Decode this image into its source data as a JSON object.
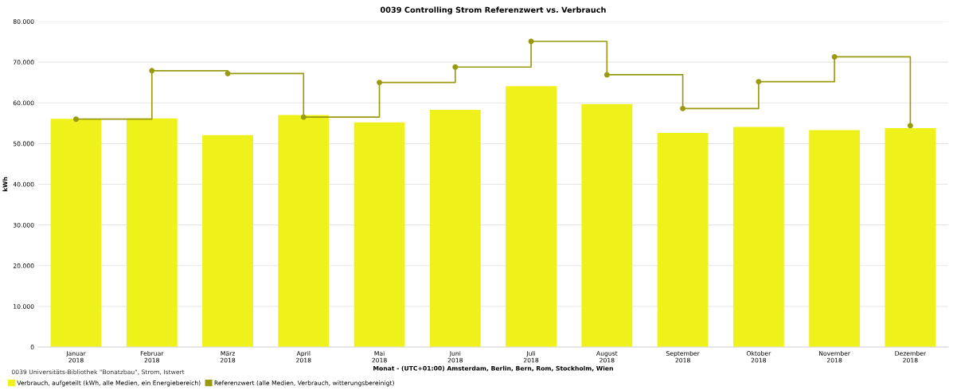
{
  "chart_data": {
    "type": "bar",
    "title": "0039 Controlling Strom Referenzwert vs. Verbrauch",
    "xlabel": "Monat - (UTC+01:00) Amsterdam, Berlin, Bern, Rom, Stockholm, Wien",
    "ylabel": "kWh",
    "legend_title": "0039 Universitäts-Bibliothek \"Bonatzbau\", Strom, Istwert",
    "categories": [
      "Januar\n2018",
      "Februar\n2018",
      "März\n2018",
      "April\n2018",
      "Mai\n2018",
      "Juni\n2018",
      "Juli\n2018",
      "August\n2018",
      "September\n2018",
      "Oktober\n2018",
      "November\n2018",
      "Dezember\n2018"
    ],
    "series": [
      {
        "name": "Verbrauch, aufgeteilt (kWh, alle Medien, ein Energiebereich)",
        "color": "#eef21a",
        "values": [
          56100,
          56200,
          52100,
          57000,
          55200,
          58300,
          64100,
          59700,
          52600,
          54100,
          53300,
          53800
        ]
      },
      {
        "name": "Referenzwert (alle Medien, Verbrauch, witterungsbereinigt)",
        "type": "step",
        "color": "#9a9a10",
        "marker": "circle",
        "values": [
          56000,
          67900,
          67200,
          56500,
          65000,
          68800,
          75100,
          66900,
          58600,
          65200,
          71300,
          54400
        ]
      }
    ],
    "ylim": [
      0,
      80000
    ],
    "yticks": [
      {
        "value": 0,
        "label": "0"
      },
      {
        "value": 10000,
        "label": "10.000"
      },
      {
        "value": 20000,
        "label": "20.000"
      },
      {
        "value": 30000,
        "label": "30.000"
      },
      {
        "value": 40000,
        "label": "40.000"
      },
      {
        "value": 50000,
        "label": "50.000"
      },
      {
        "value": 60000,
        "label": "60.000"
      },
      {
        "value": 70000,
        "label": "70.000"
      },
      {
        "value": 80000,
        "label": "80.000"
      }
    ],
    "grid": "y",
    "legend": "bottom left"
  }
}
